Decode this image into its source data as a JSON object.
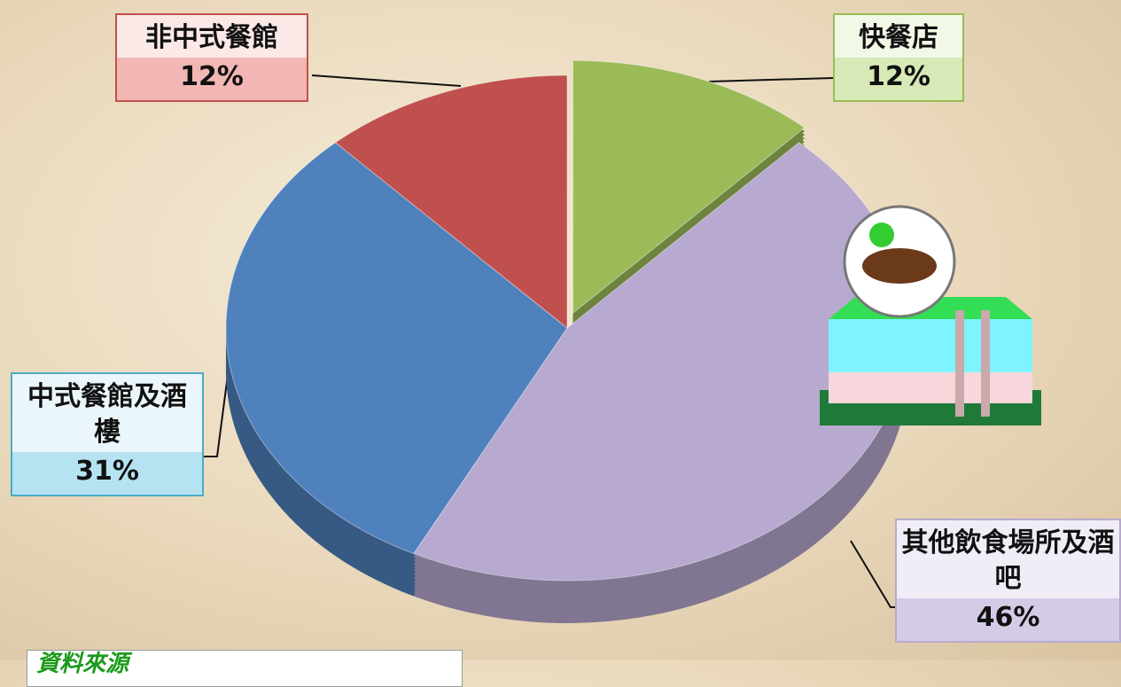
{
  "chart_data": {
    "type": "pie",
    "categories": [
      "快餐店",
      "其他飲食場所及酒吧",
      "中式餐館及酒樓",
      "非中式餐館"
    ],
    "values": [
      12,
      46,
      31,
      12
    ],
    "value_labels": [
      "12%",
      "46%",
      "31%",
      "12%"
    ],
    "colors": [
      "#9bbb59",
      "#b7a9cf",
      "#4f81bd",
      "#c0504d"
    ],
    "source": "資料來源"
  }
}
